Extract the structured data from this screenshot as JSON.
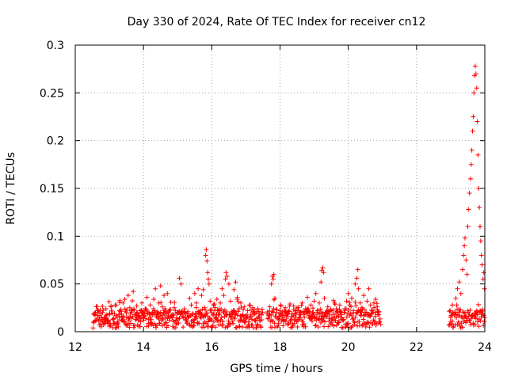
{
  "chart_data": {
    "type": "scatter",
    "title": "Day 330 of 2024, Rate Of TEC Index for receiver cn12",
    "xlabel": "GPS time / hours",
    "ylabel": "ROTI / TECUs",
    "xlim": [
      12,
      24
    ],
    "ylim": [
      0,
      0.3
    ],
    "x_ticks": [
      12,
      14,
      16,
      18,
      20,
      22,
      24
    ],
    "x_tick_labels": [
      "12",
      "14",
      "16",
      "18",
      "20",
      "22",
      "24"
    ],
    "y_ticks": [
      0,
      0.05,
      0.1,
      0.15,
      0.2,
      0.25,
      0.3
    ],
    "y_tick_labels": [
      "0",
      "0.05",
      "0.1",
      "0.15",
      "0.2",
      "0.25",
      "0.3"
    ],
    "grid": true,
    "marker": "+",
    "marker_color": "#ff0000",
    "series": [
      {
        "name": "ROTI",
        "points": [
          [
            12.55,
            0.018
          ],
          [
            12.6,
            0.012
          ],
          [
            12.65,
            0.022
          ],
          [
            12.7,
            0.015
          ],
          [
            12.75,
            0.008
          ],
          [
            12.8,
            0.02
          ],
          [
            12.85,
            0.014
          ],
          [
            12.9,
            0.024
          ],
          [
            12.95,
            0.01
          ],
          [
            13.0,
            0.018
          ],
          [
            13.05,
            0.026
          ],
          [
            13.1,
            0.013
          ],
          [
            13.15,
            0.019
          ],
          [
            13.2,
            0.028
          ],
          [
            13.25,
            0.011
          ],
          [
            13.3,
            0.022
          ],
          [
            13.35,
            0.016
          ],
          [
            13.4,
            0.03
          ],
          [
            13.45,
            0.034
          ],
          [
            13.5,
            0.02
          ],
          [
            13.55,
            0.038
          ],
          [
            13.6,
            0.025
          ],
          [
            13.65,
            0.014
          ],
          [
            13.7,
            0.042
          ],
          [
            13.75,
            0.018
          ],
          [
            13.8,
            0.027
          ],
          [
            13.85,
            0.012
          ],
          [
            13.9,
            0.022
          ],
          [
            13.95,
            0.03
          ],
          [
            14.0,
            0.017
          ],
          [
            14.05,
            0.024
          ],
          [
            14.1,
            0.036
          ],
          [
            14.15,
            0.013
          ],
          [
            14.2,
            0.028
          ],
          [
            14.25,
            0.019
          ],
          [
            14.3,
            0.034
          ],
          [
            14.35,
            0.045
          ],
          [
            14.4,
            0.021
          ],
          [
            14.45,
            0.03
          ],
          [
            14.5,
            0.048
          ],
          [
            14.55,
            0.026
          ],
          [
            14.6,
            0.038
          ],
          [
            14.65,
            0.015
          ],
          [
            14.7,
            0.04
          ],
          [
            14.75,
            0.022
          ],
          [
            14.8,
            0.031
          ],
          [
            14.85,
            0.018
          ],
          [
            14.9,
            0.025
          ],
          [
            14.95,
            0.012
          ],
          [
            15.0,
            0.02
          ],
          [
            15.05,
            0.056
          ],
          [
            15.1,
            0.05
          ],
          [
            15.15,
            0.016
          ],
          [
            15.2,
            0.024
          ],
          [
            15.25,
            0.013
          ],
          [
            15.3,
            0.021
          ],
          [
            15.35,
            0.035
          ],
          [
            15.4,
            0.028
          ],
          [
            15.45,
            0.018
          ],
          [
            15.5,
            0.04
          ],
          [
            15.55,
            0.03
          ],
          [
            15.6,
            0.045
          ],
          [
            15.65,
            0.022
          ],
          [
            15.7,
            0.038
          ],
          [
            15.75,
            0.044
          ],
          [
            15.8,
            0.025
          ],
          [
            15.82,
            0.08
          ],
          [
            15.84,
            0.086
          ],
          [
            15.86,
            0.074
          ],
          [
            15.88,
            0.062
          ],
          [
            15.9,
            0.055
          ],
          [
            15.92,
            0.05
          ],
          [
            15.95,
            0.032
          ],
          [
            16.0,
            0.02
          ],
          [
            16.05,
            0.028
          ],
          [
            16.1,
            0.015
          ],
          [
            16.15,
            0.034
          ],
          [
            16.2,
            0.022
          ],
          [
            16.25,
            0.03
          ],
          [
            16.3,
            0.045
          ],
          [
            16.35,
            0.038
          ],
          [
            16.4,
            0.055
          ],
          [
            16.42,
            0.062
          ],
          [
            16.45,
            0.058
          ],
          [
            16.5,
            0.05
          ],
          [
            16.55,
            0.032
          ],
          [
            16.6,
            0.02
          ],
          [
            16.65,
            0.044
          ],
          [
            16.7,
            0.052
          ],
          [
            16.75,
            0.036
          ],
          [
            16.8,
            0.024
          ],
          [
            16.85,
            0.03
          ],
          [
            16.9,
            0.018
          ],
          [
            16.95,
            0.026
          ],
          [
            17.0,
            0.014
          ],
          [
            17.05,
            0.022
          ],
          [
            17.1,
            0.028
          ],
          [
            17.15,
            0.016
          ],
          [
            17.2,
            0.025
          ],
          [
            17.25,
            0.012
          ],
          [
            17.3,
            0.02
          ],
          [
            17.35,
            0.024
          ],
          [
            17.4,
            0.015
          ],
          [
            17.45,
            0.018
          ],
          [
            17.7,
            0.026
          ],
          [
            17.75,
            0.05
          ],
          [
            17.78,
            0.058
          ],
          [
            17.8,
            0.055
          ],
          [
            17.82,
            0.06
          ],
          [
            17.85,
            0.035
          ],
          [
            17.9,
            0.02
          ],
          [
            17.95,
            0.014
          ],
          [
            18.0,
            0.022
          ],
          [
            18.05,
            0.018
          ],
          [
            18.1,
            0.012
          ],
          [
            18.15,
            0.025
          ],
          [
            18.2,
            0.016
          ],
          [
            18.25,
            0.021
          ],
          [
            18.3,
            0.01
          ],
          [
            18.35,
            0.019
          ],
          [
            18.4,
            0.027
          ],
          [
            18.45,
            0.015
          ],
          [
            18.5,
            0.022
          ],
          [
            18.55,
            0.013
          ],
          [
            18.6,
            0.02
          ],
          [
            18.65,
            0.03
          ],
          [
            18.7,
            0.018
          ],
          [
            18.75,
            0.024
          ],
          [
            18.8,
            0.036
          ],
          [
            18.85,
            0.02
          ],
          [
            18.9,
            0.028
          ],
          [
            18.95,
            0.015
          ],
          [
            19.0,
            0.032
          ],
          [
            19.05,
            0.04
          ],
          [
            19.1,
            0.022
          ],
          [
            19.15,
            0.03
          ],
          [
            19.2,
            0.052
          ],
          [
            19.22,
            0.064
          ],
          [
            19.25,
            0.067
          ],
          [
            19.28,
            0.062
          ],
          [
            19.3,
            0.035
          ],
          [
            19.35,
            0.02
          ],
          [
            19.4,
            0.026
          ],
          [
            19.45,
            0.014
          ],
          [
            19.5,
            0.022
          ],
          [
            19.55,
            0.018
          ],
          [
            19.6,
            0.03
          ],
          [
            19.65,
            0.024
          ],
          [
            19.7,
            0.016
          ],
          [
            19.75,
            0.028
          ],
          [
            19.8,
            0.02
          ],
          [
            19.85,
            0.012
          ],
          [
            19.9,
            0.024
          ],
          [
            19.95,
            0.032
          ],
          [
            20.0,
            0.04
          ],
          [
            20.05,
            0.028
          ],
          [
            20.1,
            0.035
          ],
          [
            20.15,
            0.022
          ],
          [
            20.2,
            0.05
          ],
          [
            20.25,
            0.056
          ],
          [
            20.28,
            0.065
          ],
          [
            20.3,
            0.045
          ],
          [
            20.35,
            0.03
          ],
          [
            20.4,
            0.025
          ],
          [
            20.45,
            0.038
          ],
          [
            20.5,
            0.02
          ],
          [
            20.55,
            0.032
          ],
          [
            20.6,
            0.045
          ],
          [
            20.65,
            0.028
          ],
          [
            20.7,
            0.022
          ],
          [
            20.75,
            0.03
          ],
          [
            20.8,
            0.034
          ],
          [
            20.85,
            0.026
          ],
          [
            20.9,
            0.018
          ],
          [
            23.0,
            0.015
          ],
          [
            23.05,
            0.028
          ],
          [
            23.1,
            0.02
          ],
          [
            23.15,
            0.035
          ],
          [
            23.2,
            0.045
          ],
          [
            23.25,
            0.052
          ],
          [
            23.3,
            0.04
          ],
          [
            23.35,
            0.065
          ],
          [
            23.38,
            0.08
          ],
          [
            23.4,
            0.09
          ],
          [
            23.42,
            0.098
          ],
          [
            23.45,
            0.075
          ],
          [
            23.48,
            0.06
          ],
          [
            23.5,
            0.11
          ],
          [
            23.52,
            0.128
          ],
          [
            23.55,
            0.145
          ],
          [
            23.58,
            0.16
          ],
          [
            23.6,
            0.175
          ],
          [
            23.62,
            0.19
          ],
          [
            23.64,
            0.21
          ],
          [
            23.66,
            0.225
          ],
          [
            23.68,
            0.25
          ],
          [
            23.7,
            0.268
          ],
          [
            23.72,
            0.278
          ],
          [
            23.74,
            0.27
          ],
          [
            23.76,
            0.255
          ],
          [
            23.78,
            0.22
          ],
          [
            23.8,
            0.185
          ],
          [
            23.82,
            0.15
          ],
          [
            23.84,
            0.13
          ],
          [
            23.86,
            0.11
          ],
          [
            23.88,
            0.095
          ],
          [
            23.9,
            0.08
          ],
          [
            23.92,
            0.07
          ],
          [
            23.95,
            0.055
          ],
          [
            23.97,
            0.062
          ],
          [
            23.99,
            0.045
          ]
        ]
      }
    ]
  }
}
